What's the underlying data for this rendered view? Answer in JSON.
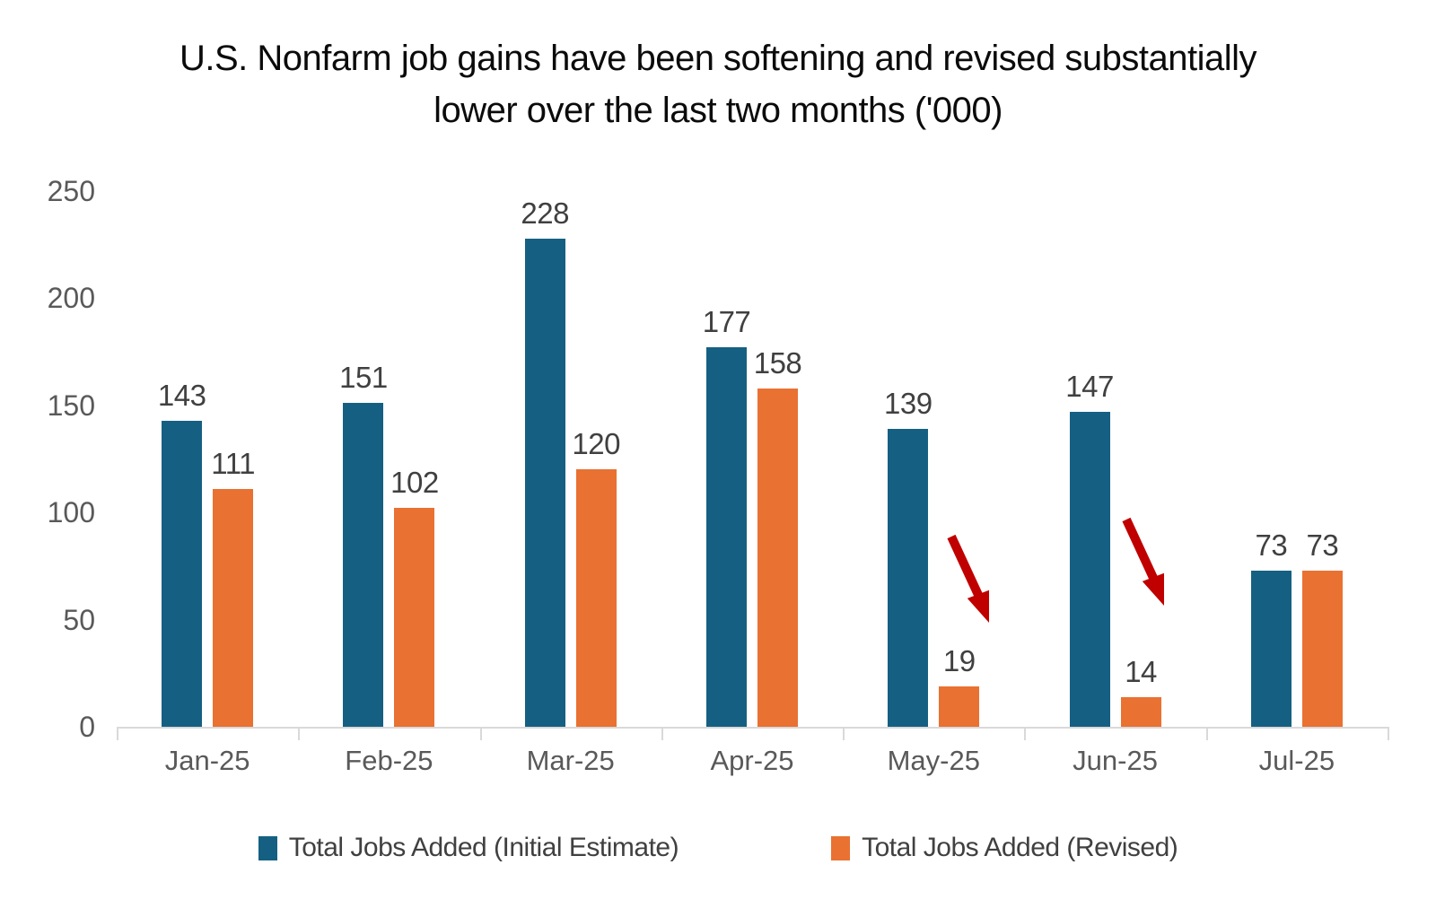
{
  "chart_data": {
    "type": "bar",
    "title": "U.S. Nonfarm job gains have been softening and revised substantially lower over the last two months ('000)",
    "categories": [
      "Jan-25",
      "Feb-25",
      "Mar-25",
      "Apr-25",
      "May-25",
      "Jun-25",
      "Jul-25"
    ],
    "series": [
      {
        "name": "Total Jobs Added (Initial Estimate)",
        "color": "#156082",
        "values": [
          143,
          151,
          228,
          177,
          139,
          147,
          73
        ]
      },
      {
        "name": "Total Jobs Added (Revised)",
        "color": "#E97132",
        "values": [
          111,
          102,
          120,
          158,
          19,
          14,
          73
        ]
      }
    ],
    "y_ticks": [
      0,
      50,
      100,
      150,
      200,
      250
    ],
    "ylim": [
      0,
      250
    ],
    "grid": false,
    "legend_position": "bottom",
    "value_labels": true,
    "annotations": [
      {
        "type": "arrow-down-right",
        "color": "#C00000",
        "target": "May-25 revised bar"
      },
      {
        "type": "arrow-down-right",
        "color": "#C00000",
        "target": "Jun-25 revised bar"
      }
    ]
  },
  "styles": {
    "title_color": "#0b0b0b",
    "axis_line": "#d9d9d9",
    "tick_label_color": "#595959",
    "value_label_color": "#404040",
    "arrow_color": "#C00000",
    "background": "#ffffff"
  }
}
